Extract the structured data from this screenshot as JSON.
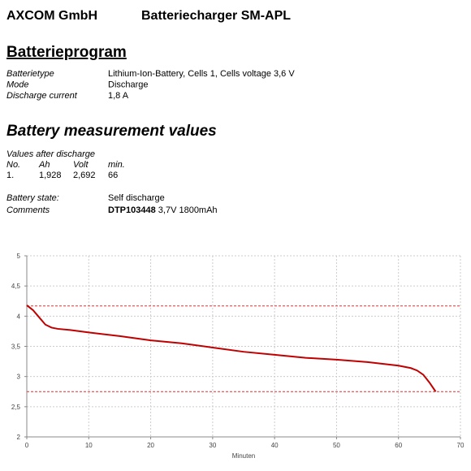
{
  "header": {
    "company": "AXCOM GmbH",
    "product": "Batteriecharger SM-APL"
  },
  "program": {
    "title": "Batterieprogram",
    "rows": [
      [
        "Batterietype",
        "Lithium-Ion-Battery, Cells 1, Cells voltage 3,6 V"
      ],
      [
        "Mode",
        "Discharge"
      ],
      [
        "Discharge current",
        "1,8 A"
      ]
    ]
  },
  "measurement": {
    "title": "Battery measurement values",
    "subtitle": "Values after discharge",
    "columns": [
      "No.",
      "Ah",
      "Volt",
      "min."
    ],
    "rows": [
      [
        "1.",
        "1,928",
        "2,692",
        "66"
      ]
    ],
    "state_label": "Battery state:",
    "state": "Self discharge",
    "comments_label": "Comments",
    "comments_bold": "DTP103448",
    "comments_rest": " 3,7V 1800mAh"
  },
  "chart_data": {
    "type": "line",
    "x_label": "Minuten",
    "x": [
      0,
      1,
      2,
      3,
      4,
      5,
      7,
      10,
      15,
      20,
      25,
      30,
      35,
      40,
      45,
      50,
      55,
      60,
      62,
      63,
      64,
      65,
      66
    ],
    "series": [
      {
        "color": "#c00000",
        "values": [
          4.18,
          4.1,
          3.98,
          3.86,
          3.81,
          3.79,
          3.77,
          3.73,
          3.67,
          3.6,
          3.55,
          3.48,
          3.41,
          3.36,
          3.31,
          3.28,
          3.24,
          3.18,
          3.14,
          3.1,
          3.03,
          2.9,
          2.75
        ]
      }
    ],
    "reference_lines": [
      4.17,
      2.75
    ],
    "reference_color": "#e03030",
    "xlim": [
      0,
      70
    ],
    "xticks": [
      0,
      10,
      20,
      30,
      40,
      50,
      60,
      70
    ],
    "ylim": [
      2,
      5
    ],
    "yticks": [
      2,
      {
        "value": 2.5,
        "label": "2,5"
      },
      3,
      {
        "value": 3.5,
        "label": "3,5"
      },
      4,
      {
        "value": 4.5,
        "label": "4,5"
      },
      5
    ],
    "grid": true
  }
}
